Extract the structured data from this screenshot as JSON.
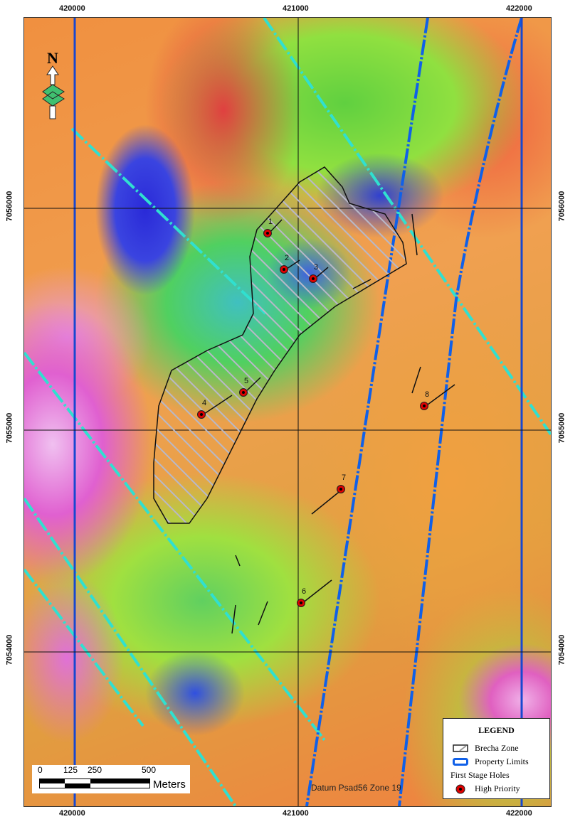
{
  "map": {
    "x_ticks": [
      "420000",
      "421000",
      "422000"
    ],
    "y_ticks": [
      "7056000",
      "7055000",
      "7054000"
    ],
    "north_label": "N",
    "datum": "Datum Psad56 Zone 19",
    "holes": [
      "1",
      "2",
      "3",
      "4",
      "5",
      "6",
      "7",
      "8"
    ]
  },
  "scale_bar": {
    "labels": [
      "0",
      "125",
      "250",
      "500"
    ],
    "unit": "Meters"
  },
  "legend": {
    "title": "LEGEND",
    "items": [
      {
        "label": "Brecha Zone",
        "icon": "hatched-polygon"
      },
      {
        "label": "Property Limits",
        "icon": "blue-line",
        "color": "#1060e8"
      },
      {
        "label": "First Stage Holes"
      },
      {
        "label": "High Priority",
        "icon": "red-dot",
        "color": "#e00000"
      }
    ]
  },
  "colors": {
    "grid": "#111111",
    "fault_cyan": "#30e0d0",
    "property_blue": "#1060e8",
    "hole": "#e00000"
  }
}
